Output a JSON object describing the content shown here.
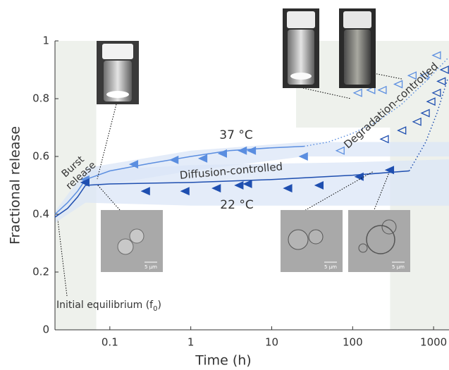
{
  "chart_data": {
    "type": "scatter",
    "x_label": "Time (h)",
    "y_label": "Fractional release",
    "xlim": [
      0.021,
      1550
    ],
    "ylim": [
      0,
      1
    ],
    "log_x": true,
    "xticks": [
      0.1,
      1,
      10,
      100,
      1000
    ],
    "yticks": [
      0,
      0.2,
      0.4,
      0.6,
      0.8,
      1
    ],
    "region_color": "#eef1ec",
    "regions": [
      {
        "x": [
          0.021,
          0.068
        ],
        "y": [
          0,
          1
        ]
      },
      {
        "x": [
          20,
          1550
        ],
        "y": [
          0.7,
          1
        ]
      },
      {
        "x": [
          290,
          1550
        ],
        "y": [
          0,
          1
        ]
      }
    ],
    "bands": [
      {
        "color": "#dbe6f7",
        "x": [
          0.05,
          1,
          25,
          1550
        ],
        "lower": [
          0.49,
          0.55,
          0.6,
          0.6
        ],
        "upper": [
          0.56,
          0.62,
          0.65,
          0.65
        ]
      },
      {
        "color": "#dbe6f7",
        "x": [
          0.021,
          0.05,
          1,
          100,
          1550
        ],
        "lower": [
          0.37,
          0.44,
          0.43,
          0.43,
          0.43
        ],
        "upper": [
          0.41,
          0.55,
          0.57,
          0.58,
          0.59
        ]
      }
    ],
    "fits": [
      {
        "color": "#5b8ee0",
        "dash": "solid",
        "x": [
          0.021,
          0.03,
          0.04,
          0.05,
          0.1,
          0.3,
          1,
          3,
          10,
          25
        ],
        "y": [
          0.4,
          0.44,
          0.48,
          0.52,
          0.55,
          0.575,
          0.6,
          0.62,
          0.63,
          0.635
        ]
      },
      {
        "color": "#5b8ee0",
        "dash": "dotted",
        "x": [
          25,
          50,
          100,
          200,
          400,
          800,
          1500
        ],
        "y": [
          0.635,
          0.65,
          0.68,
          0.72,
          0.78,
          0.86,
          0.94
        ]
      },
      {
        "color": "#1f4fb0",
        "dash": "solid",
        "x": [
          0.021,
          0.03,
          0.04,
          0.05,
          0.1,
          1,
          10,
          100,
          500
        ],
        "y": [
          0.39,
          0.42,
          0.46,
          0.5,
          0.505,
          0.51,
          0.52,
          0.535,
          0.55
        ]
      },
      {
        "color": "#1f4fb0",
        "dash": "dotted",
        "x": [
          500,
          800,
          1100,
          1500
        ],
        "y": [
          0.55,
          0.65,
          0.75,
          0.87
        ]
      }
    ],
    "series": [
      {
        "color": "#5b8ee0",
        "open": false,
        "x": [
          0.05,
          0.2,
          0.63,
          1.43,
          2.5,
          4.4,
          5.7,
          25
        ],
        "values": [
          0.52,
          0.573,
          0.588,
          0.593,
          0.61,
          0.62,
          0.62,
          0.6
        ]
      },
      {
        "color": "#5b8ee0",
        "open": true,
        "x": [
          71,
          117,
          170,
          235,
          370,
          550,
          780,
          1100
        ],
        "values": [
          0.62,
          0.82,
          0.83,
          0.83,
          0.85,
          0.88,
          0.88,
          0.95
        ]
      },
      {
        "color": "#1f4fb0",
        "open": false,
        "x": [
          0.05,
          0.28,
          0.86,
          2.1,
          4,
          5.1,
          16,
          39,
          122,
          290
        ],
        "values": [
          0.51,
          0.48,
          0.48,
          0.49,
          0.5,
          0.505,
          0.49,
          0.5,
          0.53,
          0.553
        ]
      },
      {
        "color": "#1f4fb0",
        "open": true,
        "x": [
          250,
          410,
          630,
          800,
          940,
          1100,
          1260,
          1380
        ],
        "values": [
          0.66,
          0.69,
          0.72,
          0.75,
          0.79,
          0.82,
          0.86,
          0.9
        ]
      }
    ],
    "annotations": [
      "37 °C",
      "22 °C",
      "Diffusion-controlled",
      "Degradation-controlled"
    ],
    "burst_label": [
      "Burst",
      "release"
    ],
    "initial_label": {
      "text": "Initial equilibrium (f",
      "sub": "0",
      "tail": ")"
    },
    "scale_labels": [
      "5 μm",
      "5 μm",
      "5 μm"
    ]
  }
}
